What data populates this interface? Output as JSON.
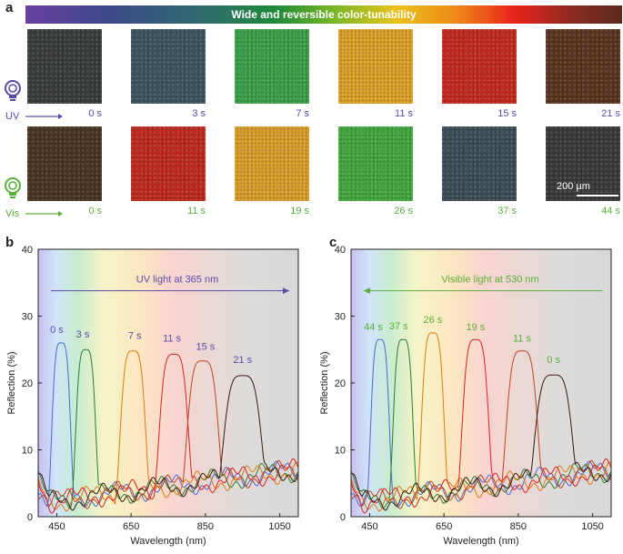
{
  "figure": {
    "panel_a": {
      "letter": "a",
      "banner_text": "Wide and reversible color-tunability",
      "uv_label": "UV",
      "vis_label": "Vis",
      "scale_bar": "200 µm",
      "uv_row": {
        "times": [
          "0 s",
          "3 s",
          "7 s",
          "11 s",
          "15 s",
          "21 s"
        ],
        "colors": [
          "#3a3d3a",
          "#3c5560",
          "#3aa34a",
          "#e0a428",
          "#c62a1c",
          "#5a3420"
        ]
      },
      "vis_row": {
        "times": [
          "0 s",
          "11 s",
          "19 s",
          "26 s",
          "37 s",
          "44 s"
        ],
        "colors": [
          "#4a3422",
          "#c22a1c",
          "#dea02a",
          "#44aa40",
          "#3c4e58",
          "#3a3a38"
        ]
      }
    },
    "panel_b": {
      "letter": "b",
      "annotation": "UV light at 365 nm",
      "annotation_color": "#5a4aa8"
    },
    "panel_c": {
      "letter": "c",
      "annotation": "Visible light at 530 nm",
      "annotation_color": "#5aae3a"
    }
  },
  "chart_data": [
    {
      "type": "line",
      "panel": "b",
      "xlabel": "Wavelength (nm)",
      "ylabel": "Reflection (%)",
      "xlim": [
        400,
        1100
      ],
      "ylim": [
        0,
        40
      ],
      "xticks": [
        450,
        650,
        850,
        1050
      ],
      "yticks": [
        0,
        10,
        20,
        30,
        40
      ],
      "series": [
        {
          "name": "0 s",
          "color": "#4a6ad8",
          "peak_x": 462,
          "peak_y": 26,
          "width": 28
        },
        {
          "name": "3 s",
          "color": "#2e7d32",
          "peak_x": 528,
          "peak_y": 25,
          "width": 30
        },
        {
          "name": "7 s",
          "color": "#e07a10",
          "peak_x": 655,
          "peak_y": 24.8,
          "width": 38
        },
        {
          "name": "11 s",
          "color": "#e02020",
          "peak_x": 765,
          "peak_y": 24.3,
          "width": 44
        },
        {
          "name": "15 s",
          "color": "#c0451a",
          "peak_x": 843,
          "peak_y": 23.3,
          "width": 48
        },
        {
          "name": "21 s",
          "color": "#3a1a10",
          "peak_x": 950,
          "peak_y": 21.1,
          "width": 58
        }
      ]
    },
    {
      "type": "line",
      "panel": "c",
      "xlabel": "Wavelength (nm)",
      "ylabel": "Reflection (%)",
      "xlim": [
        400,
        1100
      ],
      "ylim": [
        0,
        40
      ],
      "xticks": [
        450,
        650,
        850,
        1050
      ],
      "yticks": [
        0,
        10,
        20,
        30,
        40
      ],
      "series": [
        {
          "name": "44 s",
          "color": "#4a6ad8",
          "peak_x": 478,
          "peak_y": 26.5,
          "width": 28
        },
        {
          "name": "37 s",
          "color": "#2e7d32",
          "peak_x": 540,
          "peak_y": 26.5,
          "width": 30
        },
        {
          "name": "26 s",
          "color": "#e07a10",
          "peak_x": 620,
          "peak_y": 27.5,
          "width": 34
        },
        {
          "name": "19 s",
          "color": "#e02020",
          "peak_x": 735,
          "peak_y": 26.5,
          "width": 40
        },
        {
          "name": "11 s",
          "color": "#c0451a",
          "peak_x": 860,
          "peak_y": 24.8,
          "width": 48
        },
        {
          "name": "0 s",
          "color": "#3a1a10",
          "peak_x": 945,
          "peak_y": 21.2,
          "width": 58
        }
      ]
    }
  ]
}
